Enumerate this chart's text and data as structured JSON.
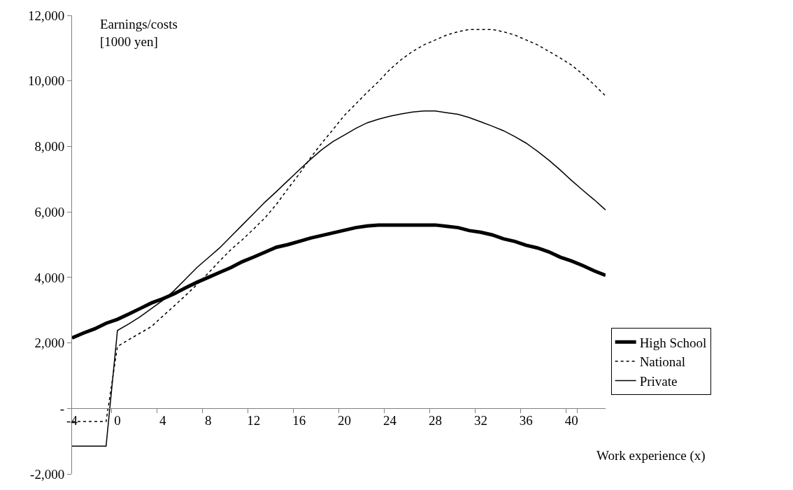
{
  "chart_data": {
    "type": "line",
    "xlabel": "Work experience (x)",
    "ylabel": "Earnings/costs\n[1000 yen]",
    "categories": [
      "-4",
      null,
      null,
      null,
      "0",
      null,
      null,
      null,
      "4",
      null,
      null,
      null,
      "8",
      null,
      null,
      null,
      "12",
      null,
      null,
      null,
      "16",
      null,
      null,
      null,
      "20",
      null,
      null,
      null,
      "24",
      null,
      null,
      null,
      "28",
      null,
      null,
      null,
      "32",
      null,
      null,
      null,
      "36",
      null,
      null,
      null,
      "40",
      null,
      null,
      null
    ],
    "series": [
      {
        "name": "High School",
        "color": "#000000",
        "line_style": "solid",
        "values": [
          2150,
          2300,
          2430,
          2600,
          2720,
          2880,
          3050,
          3220,
          3350,
          3500,
          3680,
          3850,
          4000,
          4150,
          4300,
          4480,
          4620,
          4770,
          4920,
          5000,
          5100,
          5200,
          5280,
          5360,
          5440,
          5520,
          5570,
          5600,
          5600,
          5600,
          5600,
          5600,
          5600,
          5560,
          5520,
          5430,
          5380,
          5300,
          5180,
          5100,
          4980,
          4900,
          4780,
          4620,
          4500,
          4360,
          4200,
          4060
        ]
      },
      {
        "name": "National",
        "color": "#000000",
        "line_style": "dashed",
        "values": [
          -400,
          -400,
          -400,
          -400,
          1890,
          2100,
          2300,
          2500,
          2820,
          3130,
          3450,
          3780,
          4130,
          4500,
          4850,
          5150,
          5480,
          5820,
          6230,
          6700,
          7150,
          7650,
          8100,
          8520,
          8950,
          9300,
          9650,
          9980,
          10350,
          10650,
          10900,
          11100,
          11250,
          11400,
          11500,
          11570,
          11570,
          11570,
          11500,
          11400,
          11250,
          11100,
          10900,
          10700,
          10480,
          10200,
          9880,
          9540
        ]
      },
      {
        "name": "Private",
        "color": "#000000",
        "line_style": "solid",
        "values": [
          -1150,
          -1150,
          -1150,
          -1150,
          2380,
          2580,
          2800,
          3050,
          3300,
          3600,
          3950,
          4300,
          4600,
          4900,
          5250,
          5600,
          5950,
          6300,
          6620,
          6950,
          7280,
          7600,
          7900,
          8150,
          8350,
          8550,
          8720,
          8830,
          8920,
          8990,
          9050,
          9080,
          9080,
          9030,
          8980,
          8880,
          8750,
          8620,
          8480,
          8300,
          8100,
          7850,
          7580,
          7280,
          6960,
          6660,
          6370,
          6060
        ]
      }
    ],
    "ylim": [
      -2000,
      12000
    ],
    "yticks": [
      {
        "value": -2000,
        "label": "-2,000"
      },
      {
        "value": 0,
        "label": "-"
      },
      {
        "value": 2000,
        "label": "2,000"
      },
      {
        "value": 4000,
        "label": "4,000"
      },
      {
        "value": 6000,
        "label": "6,000"
      },
      {
        "value": 8000,
        "label": "8,000"
      },
      {
        "value": 10000,
        "label": "10,000"
      },
      {
        "value": 12000,
        "label": "12,000"
      }
    ],
    "legend": "right",
    "marker": "none"
  }
}
